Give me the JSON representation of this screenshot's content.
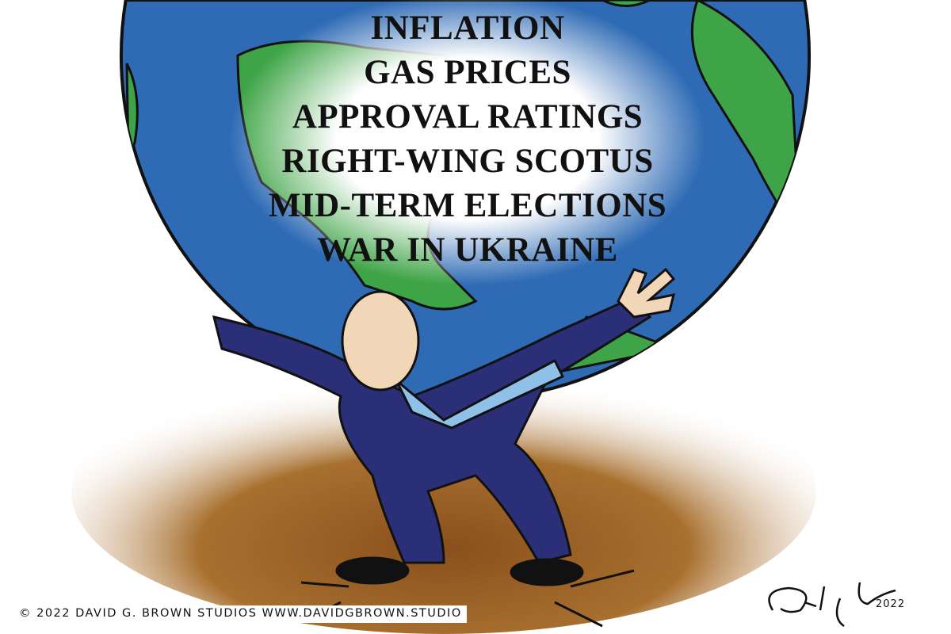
{
  "cartoon": {
    "burdens": [
      "INFLATION",
      "GAS PRICES",
      "APPROVAL RATINGS",
      "RIGHT-WING SCOTUS",
      "MID-TERM ELECTIONS",
      "WAR IN UKRAINE"
    ],
    "copyright": "© 2022 DAVID G. BROWN STUDIOS WWW.DAVIDGBROWN.STUDIO",
    "signature": "David G. Brown",
    "signature_year": "2022",
    "colors": {
      "ocean": "#2f6bb5",
      "land": "#3fa447",
      "ground": "#9a5f2a",
      "suit": "#2a2f78",
      "tie": "#8fc0e8",
      "skin": "#f2d6b8"
    }
  }
}
